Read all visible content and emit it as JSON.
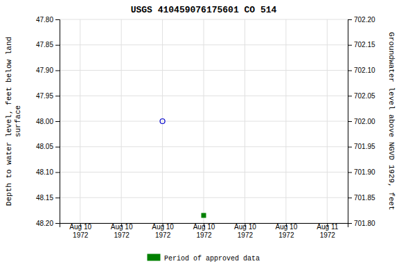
{
  "chart_data": {
    "type": "scatter",
    "title": "USGS 410459076175601 CO   514",
    "y_label": "Depth to water level, feet below land\nsurface",
    "y2_label": "Groundwater level above NGVD 1929, feet",
    "categories": [
      "Aug 10\n1972",
      "Aug 10\n1972",
      "Aug 10\n1972",
      "Aug 10\n1972",
      "Aug 10\n1972",
      "Aug 10\n1972",
      "Aug 11\n1972"
    ],
    "series": [
      {
        "color": "#0000cc",
        "marker": "circle-open",
        "values": [
          null,
          null,
          48.0,
          null,
          null,
          null,
          null
        ]
      },
      {
        "name": "Period of approved data",
        "color": "#008000",
        "marker": "square",
        "values": [
          null,
          null,
          null,
          48.185,
          null,
          null,
          null
        ]
      }
    ],
    "ylim": [
      48.2,
      47.8
    ],
    "yticks": [
      {
        "value": 47.8,
        "label": "47.80"
      },
      47.85,
      {
        "value": 47.9,
        "label": "47.90"
      },
      47.95,
      {
        "value": 48.0,
        "label": "48.00"
      },
      48.05,
      {
        "value": 48.1,
        "label": "48.10"
      },
      48.15,
      {
        "value": 48.2,
        "label": "48.20"
      }
    ],
    "y2lim": [
      701.8,
      702.2
    ],
    "y2ticks": [
      {
        "value": 701.8,
        "label": "701.80"
      },
      701.85,
      {
        "value": 701.9,
        "label": "701.90"
      },
      701.95,
      {
        "value": 702.0,
        "label": "702.00"
      },
      702.05,
      {
        "value": 702.1,
        "label": "702.10"
      },
      702.15,
      {
        "value": 702.2,
        "label": "702.20"
      }
    ],
    "grid": true,
    "legend": "bottom"
  }
}
